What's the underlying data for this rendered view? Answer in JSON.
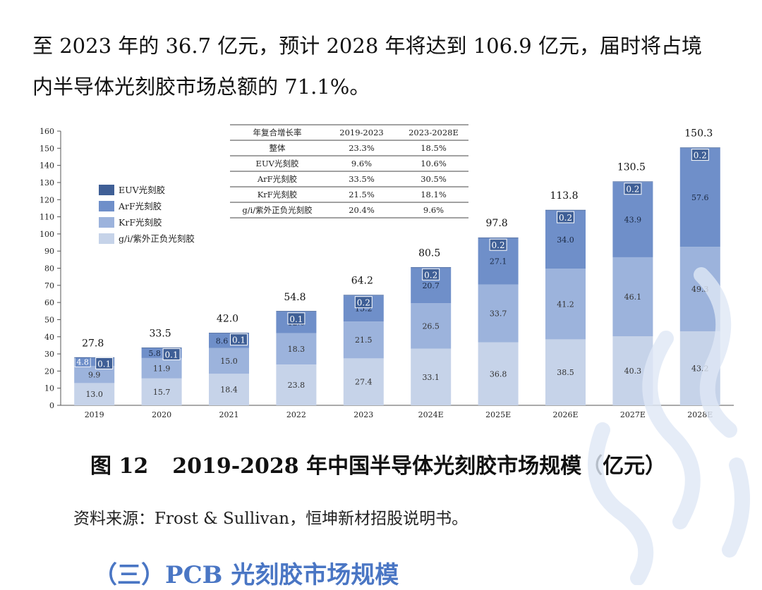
{
  "paragraph": {
    "line1": "至 2023 年的 36.7 亿元，预计 2028 年将达到 106.9 亿元，届时将占境",
    "line2": "内半导体光刻胶市场总额的 71.1%。"
  },
  "figure": {
    "number": "图 12",
    "title": "2019-2028 年中国半导体光刻胶市场规模（亿元）"
  },
  "source": "资料来源：Frost & Sullivan，恒坤新材招股说明书。",
  "section_title": "（三）PCB 光刻胶市场规模",
  "chart_data": {
    "type": "bar",
    "stacked": true,
    "categories": [
      "2019",
      "2020",
      "2021",
      "2022",
      "2023",
      "2024E",
      "2025E",
      "2026E",
      "2027E",
      "2028E"
    ],
    "series": [
      {
        "name": "g/i/紫外正负光刻胶",
        "color": "#c6d3e9",
        "values": [
          13.0,
          15.7,
          18.4,
          23.8,
          27.4,
          33.1,
          36.8,
          38.5,
          40.3,
          43.2
        ]
      },
      {
        "name": "KrF光刻胶",
        "color": "#9cb3dc",
        "values": [
          9.9,
          11.9,
          15.0,
          18.3,
          21.5,
          26.5,
          33.7,
          41.2,
          46.1,
          49.3
        ]
      },
      {
        "name": "ArF光刻胶",
        "color": "#6f8fc9",
        "values": [
          4.8,
          5.8,
          8.6,
          12.6,
          15.2,
          20.7,
          27.1,
          34.0,
          43.9,
          57.6
        ]
      },
      {
        "name": "EUV光刻胶",
        "color": "#3f5f96",
        "values": [
          0.1,
          0.1,
          0.1,
          0.1,
          0.2,
          0.2,
          0.2,
          0.2,
          0.2,
          0.2
        ]
      }
    ],
    "value_labels": {
      "g/i/紫外正负光刻胶": [
        "13.0",
        "15.7",
        "18.4",
        "23.8",
        "27.4",
        "33.1",
        "36.8",
        "38.5",
        "40.3",
        "43.2"
      ],
      "KrF光刻胶": [
        "9.9",
        "11.9",
        "15.0",
        "18.3",
        "21.5",
        "26.5",
        "33.7",
        "41.2",
        "46.1",
        "49.3"
      ],
      "ArF光刻胶": [
        "4.8",
        "5.8",
        "8.6",
        "12.6",
        "15.2",
        "20.7",
        "27.1",
        "34.0",
        "43.9",
        "57.6"
      ],
      "EUV光刻胶": [
        "0.1",
        "0.1",
        "0.1",
        "0.1",
        "0.2",
        "0.2",
        "0.2",
        "0.2",
        "0.2",
        "0.2"
      ]
    },
    "totals": [
      "27.8",
      "33.5",
      "42.0",
      "54.8",
      "64.2",
      "80.5",
      "97.8",
      "113.8",
      "130.5",
      "150.3"
    ],
    "ylim": [
      0,
      160
    ],
    "yticks": [
      0,
      10,
      20,
      30,
      40,
      50,
      60,
      70,
      80,
      90,
      100,
      110,
      120,
      130,
      140,
      150,
      160
    ],
    "legend_order": [
      "EUV光刻胶",
      "ArF光刻胶",
      "KrF光刻胶",
      "g/i/紫外正负光刻胶"
    ],
    "legend_position": "upper-left",
    "cagr_table": {
      "headers": [
        "年复合增长率",
        "2019-2023",
        "2023-2028E"
      ],
      "rows": [
        [
          "整体",
          "23.3%",
          "18.5%"
        ],
        [
          "EUV光刻胶",
          "9.6%",
          "10.6%"
        ],
        [
          "ArF光刻胶",
          "33.5%",
          "30.5%"
        ],
        [
          "KrF光刻胶",
          "21.5%",
          "18.1%"
        ],
        [
          "g/i/紫外正负光刻胶",
          "20.4%",
          "9.6%"
        ]
      ]
    }
  }
}
